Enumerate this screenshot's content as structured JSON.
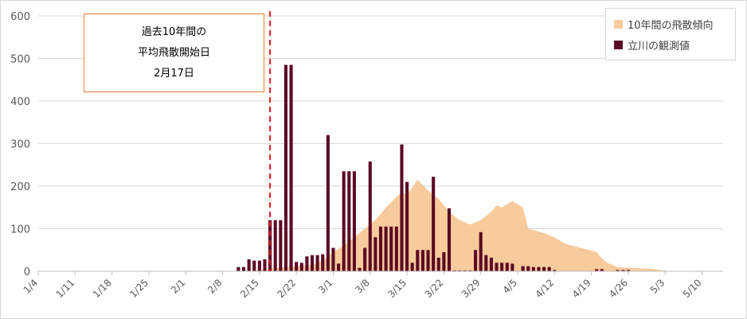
{
  "chart_data": {
    "type": "bar",
    "title": "",
    "xlabel": "",
    "ylabel": "",
    "ylim": [
      0,
      600
    ],
    "yticks": [
      0,
      100,
      200,
      300,
      400,
      500,
      600
    ],
    "grid": true,
    "x_axis_start": "1/4",
    "x_axis_end": "5/14",
    "x_tick_labels": [
      "1/4",
      "1/11",
      "1/18",
      "1/25",
      "2/1",
      "2/8",
      "2/15",
      "2/22",
      "3/1",
      "3/8",
      "3/15",
      "3/22",
      "3/29",
      "4/5",
      "4/12",
      "4/19",
      "4/26",
      "5/3",
      "5/10"
    ],
    "legend_position": "top-right",
    "series": [
      {
        "name": "10年間の飛散傾向",
        "kind": "area",
        "color": "#f8cb9c",
        "x": [
          "2/12",
          "2/15",
          "2/20",
          "2/25",
          "2/27",
          "3/1",
          "3/3",
          "3/5",
          "3/7",
          "3/9",
          "3/11",
          "3/13",
          "3/14",
          "3/15",
          "3/17",
          "3/19",
          "3/21",
          "3/23",
          "3/25",
          "3/27",
          "3/29",
          "3/31",
          "4/1",
          "4/2",
          "4/4",
          "4/6",
          "4/7",
          "4/10",
          "4/12",
          "4/14",
          "4/17",
          "4/20",
          "4/21",
          "4/22",
          "4/24",
          "4/27",
          "5/1",
          "5/4"
        ],
        "values": [
          0,
          3,
          10,
          15,
          25,
          45,
          60,
          80,
          100,
          120,
          150,
          175,
          185,
          180,
          215,
          190,
          170,
          140,
          120,
          110,
          120,
          140,
          155,
          150,
          165,
          150,
          100,
          90,
          80,
          65,
          55,
          45,
          30,
          20,
          10,
          8,
          5,
          0
        ]
      },
      {
        "name": "立川の観測値",
        "kind": "bar",
        "color": "#5c0a24",
        "x": [
          "2/11",
          "2/12",
          "2/13",
          "2/14",
          "2/15",
          "2/16",
          "2/17",
          "2/18",
          "2/19",
          "2/20",
          "2/21",
          "2/22",
          "2/23",
          "2/24",
          "2/25",
          "2/26",
          "2/27",
          "2/28",
          "3/1",
          "3/2",
          "3/3",
          "3/4",
          "3/5",
          "3/6",
          "3/7",
          "3/8",
          "3/9",
          "3/10",
          "3/11",
          "3/12",
          "3/13",
          "3/14",
          "3/15",
          "3/16",
          "3/17",
          "3/18",
          "3/19",
          "3/20",
          "3/21",
          "3/22",
          "3/23",
          "3/24",
          "3/25",
          "3/26",
          "3/27",
          "3/28",
          "3/29",
          "3/30",
          "3/31",
          "4/1",
          "4/2",
          "4/3",
          "4/4",
          "4/5",
          "4/6",
          "4/7",
          "4/8",
          "4/9",
          "4/10",
          "4/11",
          "4/12",
          "4/13",
          "4/14",
          "4/15",
          "4/16",
          "4/17",
          "4/18",
          "4/19",
          "4/20",
          "4/21",
          "4/22",
          "4/23",
          "4/24",
          "4/25",
          "4/26",
          "4/27"
        ],
        "values": [
          10,
          10,
          28,
          25,
          25,
          28,
          120,
          120,
          120,
          485,
          485,
          22,
          20,
          35,
          38,
          38,
          40,
          320,
          55,
          18,
          235,
          235,
          235,
          8,
          55,
          258,
          80,
          105,
          105,
          105,
          105,
          298,
          210,
          20,
          50,
          50,
          50,
          222,
          32,
          45,
          148,
          2,
          2,
          2,
          2,
          50,
          92,
          38,
          32,
          20,
          20,
          20,
          18,
          0,
          12,
          12,
          10,
          10,
          10,
          10,
          3,
          0,
          0,
          0,
          0,
          0,
          0,
          0,
          5,
          5,
          0,
          0,
          3,
          3,
          3,
          0
        ]
      }
    ],
    "reference_line": {
      "x": "2/17",
      "style": "dashed",
      "color": "#e02020"
    }
  },
  "callout": {
    "line1": "過去10年間の",
    "line2": "平均飛散開始日",
    "line3": "2月17日"
  },
  "legend": {
    "item1": "10年間の飛散傾向",
    "item2": "立川の観測値"
  }
}
